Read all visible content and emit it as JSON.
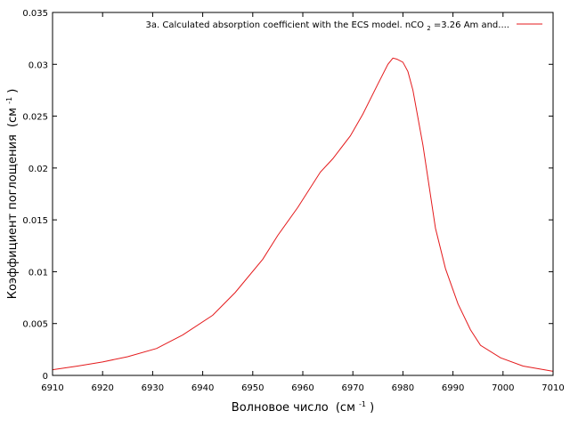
{
  "chart_data": {
    "type": "line",
    "xlabel": "Волновое число",
    "xlabel_unit_base": "(см",
    "xlabel_unit_sup": "-1",
    "xlabel_unit_end": ")",
    "ylabel": "Коэффициент поглощения",
    "ylabel_unit_base": "(см",
    "ylabel_unit_sup": "-1",
    "ylabel_unit_end": ")",
    "xlim": [
      6910,
      7010
    ],
    "ylim": [
      0,
      0.035
    ],
    "x_ticks": [
      "6910",
      "6920",
      "6930",
      "6940",
      "6950",
      "6960",
      "6970",
      "6980",
      "6990",
      "7000",
      "7010"
    ],
    "y_ticks": [
      "0",
      "0.005",
      "0.01",
      "0.015",
      "0.02",
      "0.025",
      "0.03",
      "0.035"
    ],
    "grid": false,
    "legend_position": "top-right",
    "legend_parts": {
      "pre": "3a. Calculated absorption coefficient with the ECS model. nCO",
      "sub": "2",
      "post": "=3.26 Am and...."
    },
    "line_color": "#e41a1c",
    "series": [
      {
        "x": [
          6910,
          6915,
          6920,
          6925,
          6930.8,
          6936,
          6942,
          6946.5,
          6952,
          6955,
          6959,
          6963.5,
          6966,
          6969.5,
          6972,
          6975,
          6977,
          6978,
          6978.8,
          6980,
          6981,
          6982,
          6984,
          6986.5,
          6988.5,
          6991,
          6993.5,
          6995.5,
          6999.5,
          7004,
          7010
        ],
        "values": [
          0.00055,
          0.0009,
          0.0013,
          0.0018,
          0.0026,
          0.0039,
          0.0058,
          0.008,
          0.0112,
          0.0135,
          0.0162,
          0.0196,
          0.0209,
          0.0231,
          0.0252,
          0.0281,
          0.03,
          0.0306,
          0.0305,
          0.0302,
          0.0293,
          0.0275,
          0.0222,
          0.0142,
          0.0103,
          0.0069,
          0.0044,
          0.0029,
          0.0017,
          0.0009,
          0.0004
        ]
      }
    ]
  }
}
